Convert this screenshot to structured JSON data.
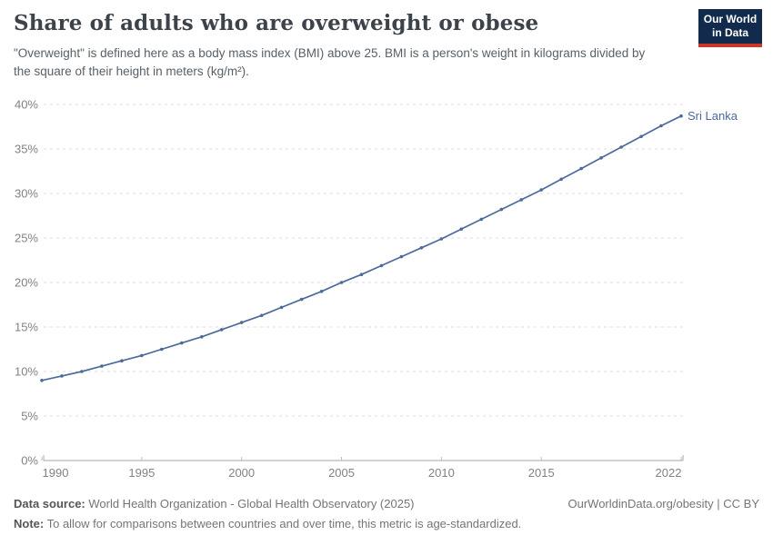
{
  "header": {
    "title": "Share of adults who are overweight or obese",
    "subtitle": "\"Overweight\" is defined here as a body mass index (BMI) above 25. BMI is a person's weight in kilograms divided by the square of their height in meters (kg/m²).",
    "logo": {
      "line1": "Our World",
      "line2": "in Data",
      "bg_color": "#122B4D",
      "stripe_color": "#C9362C"
    }
  },
  "chart_data": {
    "type": "line",
    "title": "Share of adults who are overweight or obese",
    "xlabel": "",
    "ylabel": "",
    "xlim": [
      1990,
      2022
    ],
    "ylim": [
      0,
      40
    ],
    "x_ticks": [
      1990,
      1995,
      2000,
      2005,
      2010,
      2015,
      2022
    ],
    "y_ticks": [
      0,
      5,
      10,
      15,
      20,
      25,
      30,
      35,
      40
    ],
    "y_tick_suffix": "%",
    "grid": "horizontal-dashed",
    "legend_position": "end-of-line-label",
    "colors": {
      "grid": "#dedede",
      "axis": "#a5a5a5",
      "tick": "#bdbdbd",
      "tick_label": "#828282"
    },
    "series": [
      {
        "name": "Sri Lanka",
        "color": "#4C6A9C",
        "x": [
          1990,
          1991,
          1992,
          1993,
          1994,
          1995,
          1996,
          1997,
          1998,
          1999,
          2000,
          2001,
          2002,
          2003,
          2004,
          2005,
          2006,
          2007,
          2008,
          2009,
          2010,
          2011,
          2012,
          2013,
          2014,
          2015,
          2016,
          2017,
          2018,
          2019,
          2020,
          2021,
          2022
        ],
        "values": [
          9.0,
          9.5,
          10.0,
          10.6,
          11.2,
          11.8,
          12.5,
          13.2,
          13.9,
          14.7,
          15.5,
          16.3,
          17.2,
          18.1,
          19.0,
          20.0,
          20.9,
          21.9,
          22.9,
          23.9,
          24.9,
          26.0,
          27.1,
          28.2,
          29.3,
          30.4,
          31.6,
          32.8,
          34.0,
          35.2,
          36.4,
          37.6,
          38.7
        ]
      }
    ]
  },
  "footer": {
    "source_label": "Data source:",
    "source_text": " World Health Organization - Global Health Observatory (2025)",
    "note_label": "Note:",
    "note_text": " To allow for comparisons between countries and over time, this metric is age-standardized.",
    "link": "OurWorldinData.org/obesity | CC BY"
  }
}
